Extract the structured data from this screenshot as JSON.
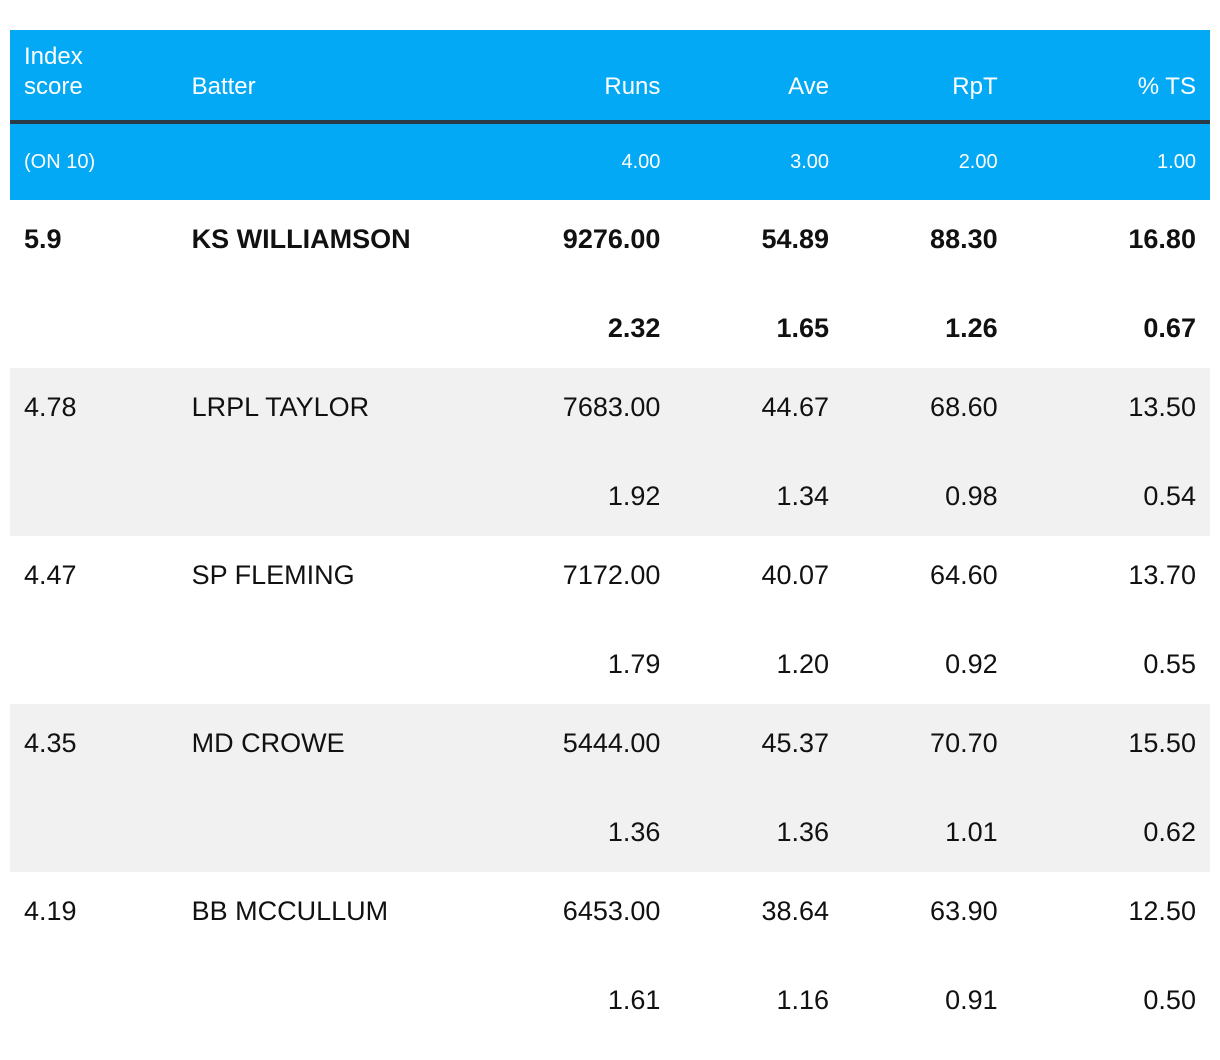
{
  "header": {
    "index_line1": "Index",
    "index_line2": "score",
    "batter": "Batter",
    "runs": "Runs",
    "ave": "Ave",
    "rpt": "RpT",
    "ts": "% TS"
  },
  "weights": {
    "index": "(ON 10)",
    "runs": "4.00",
    "ave": "3.00",
    "rpt": "2.00",
    "ts": "1.00"
  },
  "rows": [
    {
      "index": "5.9",
      "batter": "KS WILLIAMSON",
      "runs": "9276.00",
      "ave": "54.89",
      "rpt": "88.30",
      "ts": "16.80",
      "runs_w": "2.32",
      "ave_w": "1.65",
      "rpt_w": "1.26",
      "ts_w": "0.67"
    },
    {
      "index": "4.78",
      "batter": "LRPL TAYLOR",
      "runs": "7683.00",
      "ave": "44.67",
      "rpt": "68.60",
      "ts": "13.50",
      "runs_w": "1.92",
      "ave_w": "1.34",
      "rpt_w": "0.98",
      "ts_w": "0.54"
    },
    {
      "index": "4.47",
      "batter": "SP FLEMING",
      "runs": "7172.00",
      "ave": "40.07",
      "rpt": "64.60",
      "ts": "13.70",
      "runs_w": "1.79",
      "ave_w": "1.20",
      "rpt_w": "0.92",
      "ts_w": "0.55"
    },
    {
      "index": "4.35",
      "batter": "MD CROWE",
      "runs": "5444.00",
      "ave": "45.37",
      "rpt": "70.70",
      "ts": "15.50",
      "runs_w": "1.36",
      "ave_w": "1.36",
      "rpt_w": "1.01",
      "ts_w": "0.62"
    },
    {
      "index": "4.19",
      "batter": "BB MCCULLUM",
      "runs": "6453.00",
      "ave": "38.64",
      "rpt": "63.90",
      "ts": "12.50",
      "runs_w": "1.61",
      "ave_w": "1.16",
      "rpt_w": "0.91",
      "ts_w": "0.50"
    }
  ],
  "colors": {
    "header_bg": "#03a9f4",
    "header_text": "#ffffff",
    "divider": "#2a3b47",
    "shade": "#f1f1f1"
  }
}
